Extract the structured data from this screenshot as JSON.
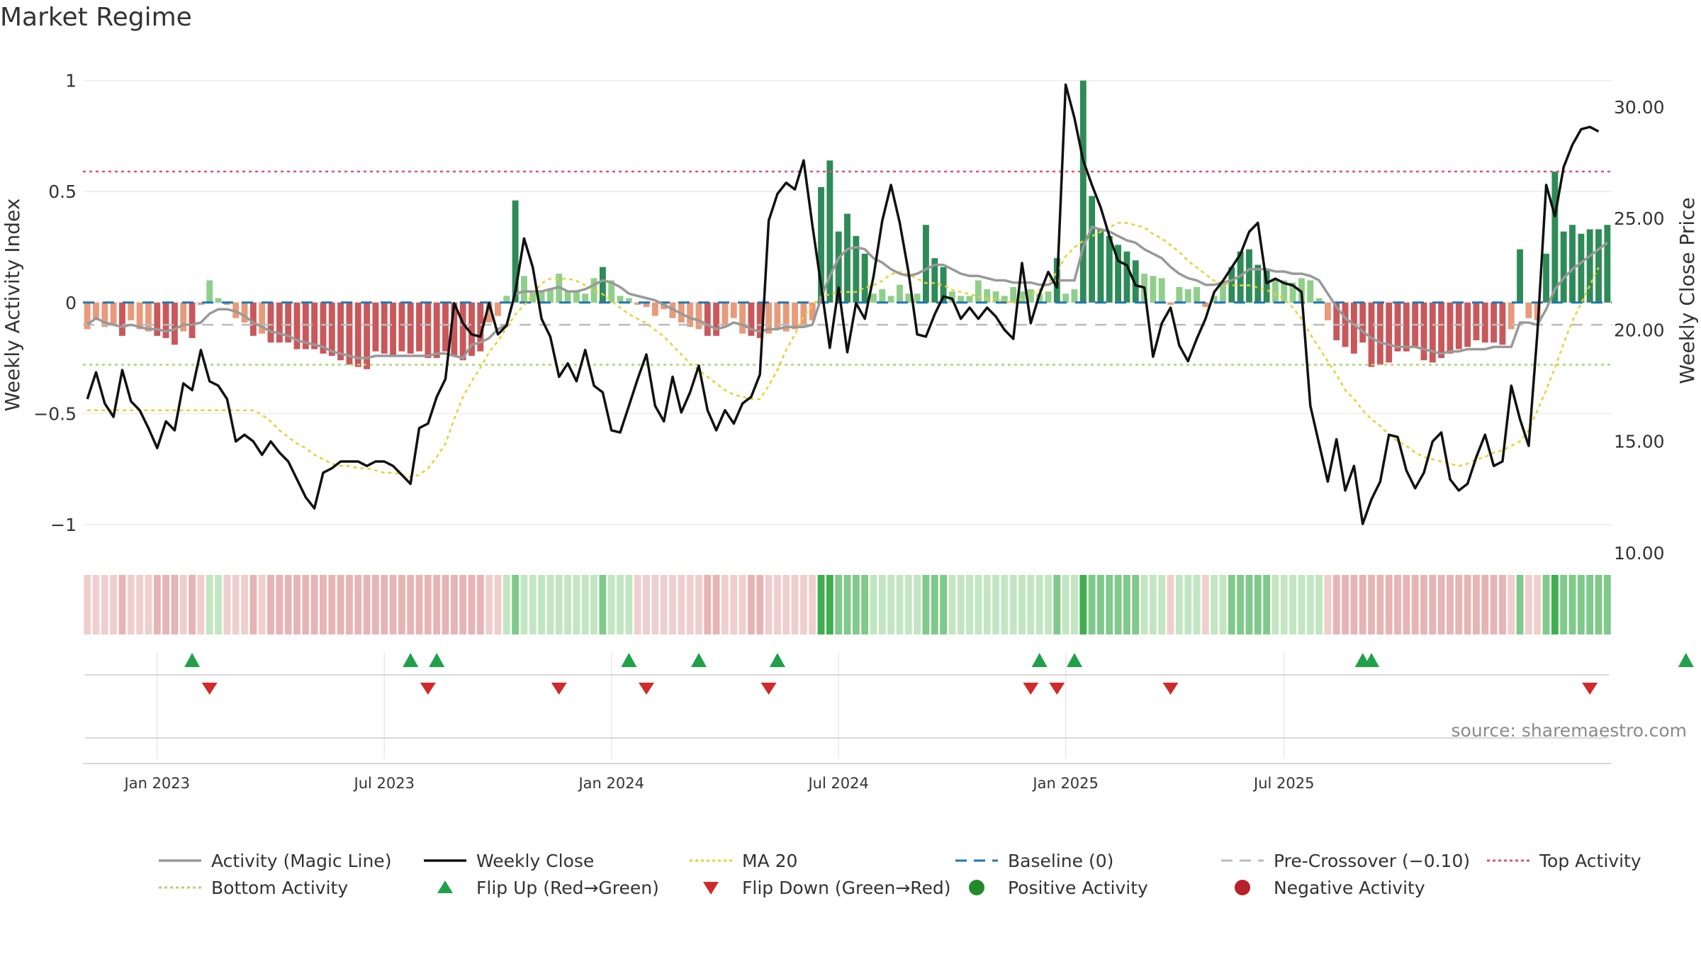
{
  "title": "Market Regime",
  "source": "source: sharemaestro.com",
  "chart_data": {
    "type": "bar",
    "y_left_label": "Weekly Activity Index",
    "y_right_label": "Weekly Close Price",
    "y_left_ticks": [
      {
        "value": 1,
        "label": "1"
      },
      {
        "value": 0.5,
        "label": "0.5"
      },
      {
        "value": 0,
        "label": "0"
      },
      {
        "value": -0.5,
        "label": "−0.5"
      },
      {
        "value": -1,
        "label": "−1"
      }
    ],
    "y_left_range": [
      -1.08,
      1.05
    ],
    "y_right_ticks": [
      {
        "value": 30,
        "label": "30.00"
      },
      {
        "value": 25,
        "label": "25.00"
      },
      {
        "value": 20,
        "label": "20.00"
      },
      {
        "value": 15,
        "label": "15.00"
      },
      {
        "value": 10,
        "label": "10.00"
      }
    ],
    "y_right_range": [
      10,
      34
    ],
    "x_ticks": [
      "Jan 2023",
      "Jul 2023",
      "Jan 2024",
      "Jul 2024",
      "Jan 2025",
      "Jul 2025"
    ],
    "reference_lines": {
      "top_activity": 0.59,
      "bottom_activity": -0.28,
      "pre_crossover": -0.1,
      "baseline": 0
    },
    "activity": [
      -0.12,
      -0.08,
      -0.11,
      -0.1,
      -0.15,
      -0.08,
      -0.12,
      -0.13,
      -0.15,
      -0.16,
      -0.19,
      -0.13,
      -0.16,
      -0.01,
      0.1,
      0.02,
      -0.01,
      -0.07,
      -0.09,
      -0.15,
      -0.14,
      -0.18,
      -0.18,
      -0.18,
      -0.21,
      -0.21,
      -0.21,
      -0.23,
      -0.24,
      -0.26,
      -0.28,
      -0.29,
      -0.3,
      -0.22,
      -0.23,
      -0.24,
      -0.22,
      -0.23,
      -0.22,
      -0.25,
      -0.25,
      -0.22,
      -0.24,
      -0.26,
      -0.24,
      -0.22,
      -0.09,
      -0.06,
      0.03,
      0.46,
      0.12,
      0.05,
      0.05,
      0.06,
      0.13,
      0.05,
      0.05,
      0.04,
      0.11,
      0.16,
      0.1,
      0.03,
      0.02,
      -0.01,
      -0.02,
      -0.06,
      -0.03,
      -0.07,
      -0.09,
      -0.11,
      -0.12,
      -0.15,
      -0.15,
      -0.11,
      -0.07,
      -0.14,
      -0.15,
      -0.16,
      -0.14,
      -0.12,
      -0.13,
      -0.12,
      -0.1,
      -0.08,
      0.52,
      0.64,
      0.32,
      0.4,
      0.3,
      0.22,
      0.04,
      0.06,
      0.03,
      0.08,
      0.04,
      0.04,
      0.35,
      0.2,
      0.16,
      0.05,
      0.03,
      0.03,
      0.1,
      0.06,
      0.05,
      0.03,
      0.07,
      0.05,
      0.06,
      0.04,
      0.05,
      0.2,
      0.04,
      0.06,
      1.0,
      0.48,
      0.33,
      0.3,
      0.26,
      0.23,
      0.19,
      0.13,
      0.12,
      0.11,
      -0.01,
      0.07,
      0.06,
      0.07,
      -0.02,
      0.03,
      0.09,
      0.16,
      0.23,
      0.24,
      0.17,
      0.15,
      0.1,
      0.1,
      0.09,
      0.11,
      0.1,
      0.02,
      -0.08,
      -0.17,
      -0.2,
      -0.23,
      -0.18,
      -0.29,
      -0.28,
      -0.27,
      -0.22,
      -0.22,
      -0.2,
      -0.26,
      -0.27,
      -0.25,
      -0.23,
      -0.21,
      -0.2,
      -0.17,
      -0.18,
      -0.18,
      -0.19,
      -0.12,
      0.24,
      -0.07,
      -0.08,
      0.22,
      0.59,
      0.32,
      0.35,
      0.31,
      0.33,
      0.33,
      0.35
    ],
    "magic_line": [
      -0.1,
      -0.07,
      -0.09,
      -0.1,
      -0.11,
      -0.1,
      -0.11,
      -0.12,
      -0.12,
      -0.13,
      -0.12,
      -0.1,
      -0.1,
      -0.09,
      -0.05,
      -0.03,
      -0.03,
      -0.04,
      -0.06,
      -0.09,
      -0.11,
      -0.13,
      -0.14,
      -0.15,
      -0.17,
      -0.18,
      -0.19,
      -0.2,
      -0.22,
      -0.23,
      -0.24,
      -0.25,
      -0.25,
      -0.24,
      -0.24,
      -0.24,
      -0.24,
      -0.24,
      -0.24,
      -0.24,
      -0.23,
      -0.23,
      -0.24,
      -0.25,
      -0.19,
      -0.18,
      -0.16,
      -0.12,
      -0.1,
      0.04,
      0.05,
      0.05,
      0.05,
      0.06,
      0.07,
      0.05,
      0.05,
      0.06,
      0.08,
      0.1,
      0.09,
      0.07,
      0.04,
      0.03,
      0.02,
      0.01,
      -0.01,
      -0.03,
      -0.05,
      -0.07,
      -0.08,
      -0.1,
      -0.12,
      -0.11,
      -0.09,
      -0.1,
      -0.12,
      -0.13,
      -0.12,
      -0.12,
      -0.11,
      -0.11,
      -0.11,
      -0.1,
      0.02,
      0.12,
      0.2,
      0.24,
      0.25,
      0.24,
      0.2,
      0.18,
      0.15,
      0.13,
      0.12,
      0.13,
      0.15,
      0.17,
      0.17,
      0.15,
      0.13,
      0.12,
      0.12,
      0.11,
      0.1,
      0.1,
      0.09,
      0.09,
      0.09,
      0.08,
      0.08,
      0.1,
      0.1,
      0.1,
      0.25,
      0.34,
      0.33,
      0.32,
      0.3,
      0.28,
      0.27,
      0.24,
      0.22,
      0.2,
      0.16,
      0.13,
      0.11,
      0.1,
      0.08,
      0.08,
      0.09,
      0.1,
      0.12,
      0.15,
      0.15,
      0.15,
      0.14,
      0.14,
      0.13,
      0.13,
      0.12,
      0.1,
      0.04,
      -0.02,
      -0.07,
      -0.1,
      -0.13,
      -0.16,
      -0.18,
      -0.19,
      -0.2,
      -0.2,
      -0.2,
      -0.21,
      -0.22,
      -0.23,
      -0.22,
      -0.22,
      -0.21,
      -0.21,
      -0.21,
      -0.2,
      -0.2,
      -0.2,
      -0.09,
      -0.09,
      -0.1,
      -0.03,
      0.06,
      0.11,
      0.15,
      0.18,
      0.21,
      0.24,
      0.27
    ],
    "weekly_close": [
      16.9,
      18.1,
      16.7,
      16.1,
      18.2,
      16.8,
      16.4,
      15.6,
      14.7,
      15.9,
      15.5,
      17.6,
      17.3,
      19.1,
      17.7,
      17.5,
      16.9,
      15.0,
      15.3,
      15.0,
      14.4,
      15.0,
      14.5,
      14.1,
      13.3,
      12.5,
      12.0,
      13.6,
      13.8,
      14.1,
      14.1,
      14.1,
      13.9,
      14.1,
      14.1,
      13.9,
      13.5,
      13.1,
      15.6,
      15.8,
      17.0,
      17.8,
      21.2,
      20.3,
      19.8,
      19.7,
      21.2,
      19.8,
      20.2,
      21.7,
      24.1,
      22.8,
      20.5,
      19.7,
      17.9,
      18.5,
      17.7,
      19.1,
      17.5,
      17.2,
      15.5,
      15.4,
      16.6,
      17.8,
      18.9,
      16.6,
      15.9,
      17.9,
      16.3,
      17.2,
      18.4,
      16.4,
      15.5,
      16.4,
      15.8,
      16.7,
      17.0,
      18.0,
      24.9,
      26.1,
      26.6,
      26.3,
      27.6,
      24.7,
      22.0,
      19.2,
      21.9,
      19.0,
      21.2,
      20.5,
      22.4,
      24.9,
      26.5,
      24.8,
      22.6,
      19.8,
      19.7,
      20.7,
      21.5,
      21.4,
      20.5,
      21.0,
      20.5,
      21.0,
      20.6,
      20.0,
      19.6,
      23.0,
      20.3,
      21.6,
      22.6,
      21.9,
      31.0,
      29.5,
      27.6,
      26.5,
      25.5,
      24.2,
      23.1,
      22.9,
      22.0,
      21.9,
      18.8,
      20.3,
      21.0,
      19.3,
      18.6,
      19.6,
      20.5,
      21.7,
      22.2,
      22.8,
      23.4,
      24.4,
      24.8,
      22.1,
      22.3,
      22.1,
      22.0,
      21.7,
      16.6,
      14.9,
      13.2,
      15.1,
      12.8,
      13.9,
      11.3,
      12.4,
      13.2,
      15.3,
      15.2,
      13.7,
      12.9,
      13.6,
      15.0,
      15.4,
      13.3,
      12.8,
      13.1,
      14.3,
      15.3,
      13.9,
      14.1,
      17.5,
      16.0,
      14.8,
      19.9,
      26.5,
      25.1,
      27.3,
      28.3,
      29.0,
      29.1,
      28.9
    ],
    "ma20": [
      16.4,
      16.4,
      16.4,
      16.4,
      16.4,
      16.4,
      16.4,
      16.4,
      16.4,
      16.4,
      16.4,
      16.4,
      16.4,
      16.4,
      16.4,
      16.4,
      16.4,
      16.4,
      16.4,
      16.4,
      16.2,
      15.9,
      15.5,
      15.2,
      14.9,
      14.7,
      14.4,
      14.2,
      14.0,
      13.9,
      13.9,
      13.8,
      13.8,
      13.7,
      13.6,
      13.6,
      13.5,
      13.4,
      13.5,
      13.8,
      14.3,
      14.9,
      16.0,
      17.0,
      17.7,
      18.3,
      19.0,
      19.5,
      20.1,
      20.7,
      21.1,
      21.6,
      22.1,
      22.3,
      22.3,
      22.3,
      22.2,
      22.0,
      21.8,
      21.6,
      21.3,
      21.0,
      20.7,
      20.5,
      20.3,
      20.0,
      19.7,
      19.3,
      18.9,
      18.5,
      18.2,
      17.9,
      17.6,
      17.3,
      17.1,
      17.0,
      16.9,
      16.9,
      17.5,
      18.2,
      19.1,
      19.8,
      20.6,
      21.1,
      21.5,
      21.6,
      21.7,
      21.7,
      21.7,
      21.9,
      22.0,
      22.2,
      22.5,
      22.6,
      22.5,
      22.3,
      22.1,
      22.1,
      22.0,
      21.8,
      21.7,
      21.6,
      21.5,
      21.4,
      21.4,
      21.3,
      21.2,
      21.4,
      21.6,
      21.8,
      22.1,
      22.6,
      23.3,
      23.7,
      24.0,
      24.2,
      24.4,
      24.6,
      24.8,
      24.8,
      24.7,
      24.6,
      24.3,
      24.1,
      23.8,
      23.5,
      23.1,
      22.8,
      22.5,
      22.2,
      22.1,
      22.0,
      22.0,
      22.0,
      21.9,
      21.8,
      21.6,
      21.4,
      21.0,
      20.5,
      19.8,
      19.2,
      18.6,
      18.0,
      17.3,
      16.9,
      16.4,
      16.0,
      15.7,
      15.3,
      15.0,
      14.8,
      14.5,
      14.3,
      14.2,
      14.1,
      14.0,
      13.9,
      14.0,
      14.2,
      14.3,
      14.5,
      14.6,
      14.8,
      15.0,
      15.5,
      16.4,
      17.3,
      18.3,
      19.4,
      20.4,
      21.2,
      22.0,
      22.8
    ],
    "flip_up_index": [
      12,
      37,
      40,
      62,
      70,
      79,
      109,
      113,
      146,
      147,
      183
    ],
    "flip_down_index": [
      14,
      39,
      54,
      64,
      78,
      108,
      111,
      124,
      172
    ],
    "regime_strip": "activity-colored band (green = positive, red = negative)",
    "series_colors": {
      "positive_bar_strong": "#2e8b57",
      "positive_bar_light": "#8fcf8a",
      "negative_bar_strong": "#c9585b",
      "negative_bar_light": "#e89a7a",
      "magic_line": "#999999",
      "weekly_close": "#111111",
      "ma20": "#e6d22e",
      "baseline": "#1f77b4",
      "pre_crossover": "#bbbbbb",
      "top_activity": "#e0507a",
      "bottom_activity": "#a8d86a",
      "flip_up": "#21a04a",
      "flip_down": "#d02a2a"
    },
    "legend": [
      {
        "key": "magic",
        "label": "Activity (Magic Line)",
        "symbol": "line",
        "color": "#999999"
      },
      {
        "key": "close",
        "label": "Weekly Close",
        "symbol": "line",
        "color": "#111111"
      },
      {
        "key": "ma20",
        "label": "MA 20",
        "symbol": "dotted",
        "color": "#e6d22e"
      },
      {
        "key": "baseline",
        "label": "Baseline (0)",
        "symbol": "dashed",
        "color": "#1f77b4"
      },
      {
        "key": "precross",
        "label": "Pre-Crossover (−0.10)",
        "symbol": "dashed",
        "color": "#bbbbbb"
      },
      {
        "key": "top",
        "label": "Top Activity",
        "symbol": "dotted",
        "color": "#e0507a"
      },
      {
        "key": "bottom",
        "label": "Bottom Activity",
        "symbol": "dotted",
        "color": "#a8d86a"
      },
      {
        "key": "flipup",
        "label": "Flip Up (Red→Green)",
        "symbol": "triangle-up",
        "color": "#21a04a"
      },
      {
        "key": "flipdown",
        "label": "Flip Down (Green→Red)",
        "symbol": "triangle-down",
        "color": "#d02a2a"
      },
      {
        "key": "pos",
        "label": "Positive Activity",
        "symbol": "circle",
        "color": "#238a2b"
      },
      {
        "key": "neg",
        "label": "Negative Activity",
        "symbol": "circle",
        "color": "#b8202a"
      }
    ]
  }
}
